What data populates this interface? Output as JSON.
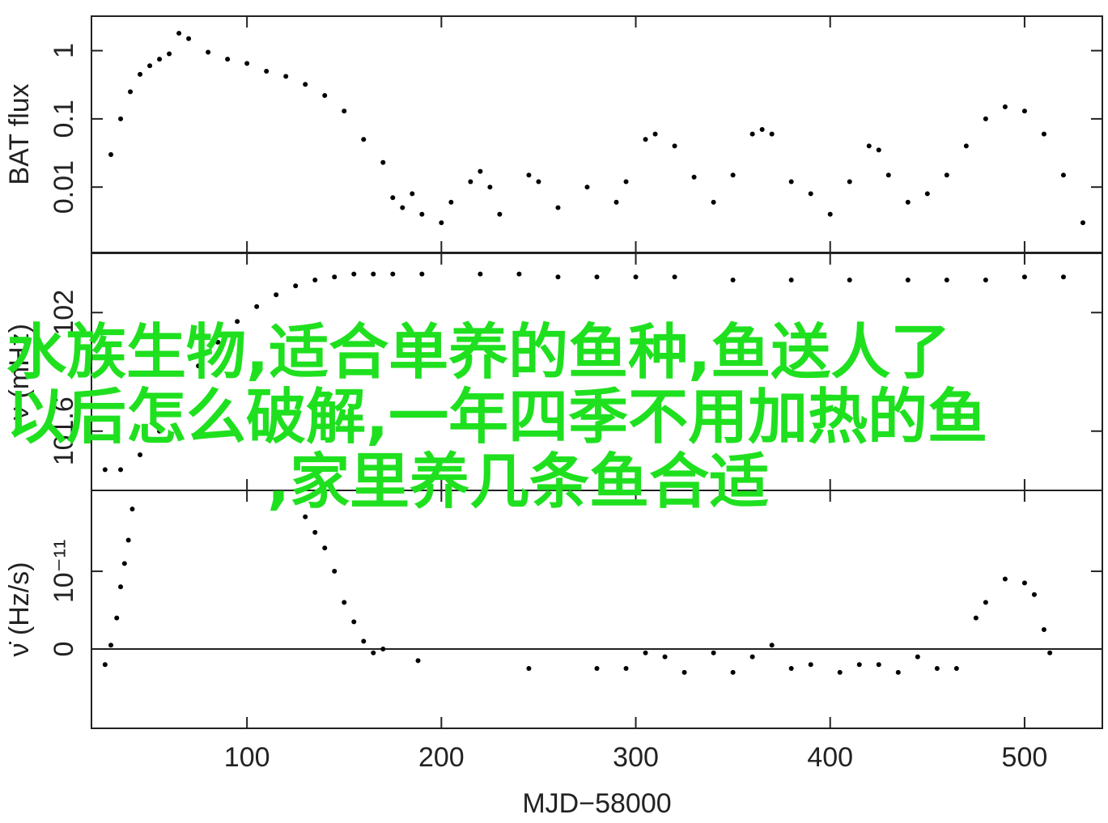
{
  "chart_data": [
    {
      "type": "scatter",
      "ylabel": "BAT flux",
      "color": "#000000",
      "log_y": true,
      "xlim": [
        20,
        540
      ],
      "xticks": [
        100,
        200,
        300,
        400,
        500
      ],
      "ylim": [
        0.0011,
        3.2
      ],
      "yticks": [
        0.01,
        0.1,
        1
      ],
      "x": [
        30,
        35,
        40,
        45,
        50,
        55,
        60,
        65,
        70,
        80,
        90,
        100,
        110,
        120,
        130,
        140,
        150,
        160,
        170,
        175,
        180,
        185,
        190,
        200,
        205,
        215,
        220,
        225,
        230,
        245,
        250,
        260,
        275,
        290,
        295,
        305,
        310,
        320,
        330,
        340,
        350,
        360,
        365,
        370,
        380,
        390,
        400,
        410,
        420,
        425,
        430,
        440,
        450,
        460,
        470,
        480,
        490,
        500,
        510,
        520,
        530
      ],
      "values": [
        0.03,
        0.1,
        0.25,
        0.45,
        0.6,
        0.75,
        0.9,
        1.8,
        1.5,
        0.95,
        0.75,
        0.65,
        0.5,
        0.42,
        0.32,
        0.22,
        0.13,
        0.05,
        0.023,
        0.007,
        0.005,
        0.008,
        0.004,
        0.003,
        0.006,
        0.012,
        0.017,
        0.01,
        0.004,
        0.015,
        0.012,
        0.005,
        0.01,
        0.006,
        0.012,
        0.05,
        0.06,
        0.04,
        0.014,
        0.006,
        0.015,
        0.06,
        0.07,
        0.06,
        0.012,
        0.008,
        0.004,
        0.012,
        0.04,
        0.035,
        0.015,
        0.006,
        0.008,
        0.015,
        0.04,
        0.1,
        0.15,
        0.13,
        0.06,
        0.015,
        0.003
      ]
    },
    {
      "type": "scatter",
      "ylabel": "ν (mHz)",
      "color": "#000000",
      "xlim": [
        20,
        540
      ],
      "xticks": [
        100,
        200,
        300,
        400,
        500
      ],
      "ylim": [
        101.4,
        102.2
      ],
      "yticks": [
        101.6,
        102
      ],
      "x": [
        27,
        35,
        45,
        55,
        65,
        75,
        85,
        95,
        105,
        115,
        125,
        135,
        145,
        155,
        165,
        175,
        190,
        220,
        240,
        260,
        280,
        300,
        320,
        350,
        380,
        410,
        440,
        460,
        480,
        500,
        520
      ],
      "values": [
        101.47,
        101.47,
        101.52,
        101.6,
        101.72,
        101.82,
        101.9,
        101.97,
        102.02,
        102.06,
        102.09,
        102.11,
        102.12,
        102.13,
        102.13,
        102.13,
        102.13,
        102.13,
        102.13,
        102.12,
        102.12,
        102.12,
        102.12,
        102.11,
        102.11,
        102.11,
        102.11,
        102.11,
        102.11,
        102.12,
        102.12
      ]
    },
    {
      "type": "scatter",
      "ylabel": "ν̇ (Hz/s)",
      "xlabel": "MJD−58000",
      "color": "#000000",
      "xlim": [
        20,
        540
      ],
      "xticks": [
        100,
        200,
        300,
        400,
        500
      ],
      "ylim": [
        -1.02e-11,
        2.04e-11
      ],
      "yticks": [
        0,
        {
          "value": 1e-11,
          "label": "10⁻¹¹"
        }
      ],
      "x": [
        27,
        30,
        33,
        35,
        37,
        39,
        41,
        130,
        135,
        140,
        145,
        150,
        155,
        160,
        165,
        170,
        188,
        245,
        280,
        295,
        305,
        315,
        325,
        340,
        350,
        360,
        370,
        380,
        390,
        405,
        415,
        425,
        435,
        445,
        455,
        465,
        475,
        480,
        490,
        500,
        505,
        510,
        513
      ],
      "values": [
        -2e-12,
        5e-13,
        4e-12,
        8e-12,
        1.1e-11,
        1.4e-11,
        1.8e-11,
        1.7e-11,
        1.5e-11,
        1.3e-11,
        1e-11,
        6e-12,
        3.5e-12,
        1e-12,
        -5e-13,
        0,
        -1.5e-12,
        -2.5e-12,
        -2.5e-12,
        -2.5e-12,
        -5e-13,
        -1e-12,
        -3e-12,
        -5e-13,
        -3e-12,
        -1e-12,
        5e-13,
        -2.5e-12,
        -2e-12,
        -3e-12,
        -2e-12,
        -2e-12,
        -3e-12,
        -1e-12,
        -2.5e-12,
        -2.5e-12,
        4e-12,
        6e-12,
        9e-12,
        8.5e-12,
        7e-12,
        2.5e-12,
        -5e-13
      ]
    }
  ],
  "overlay": [
    "水族生物,适合单养的鱼种,鱼送人了",
    "以后怎么破解,一年四季不用加热的鱼",
    ",家里养几条鱼合适"
  ]
}
